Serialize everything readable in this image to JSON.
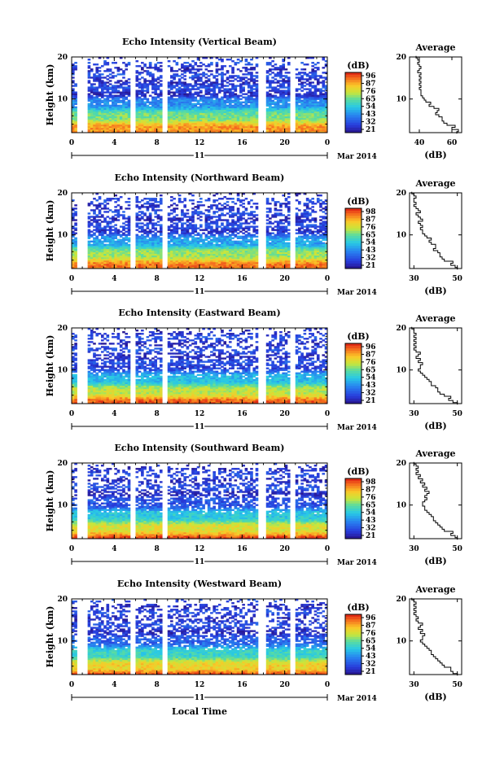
{
  "chart_data": [
    {
      "type": "heatmap",
      "title": "Echo Intensity (Vertical Beam)",
      "ylabel": "Height (km)",
      "xticks": [
        "0",
        "4",
        "8",
        "12",
        "16",
        "20",
        "0"
      ],
      "yticks": [
        "20",
        "10"
      ],
      "xlim": [
        0,
        24
      ],
      "ylim": [
        2,
        20
      ],
      "date_day": "11",
      "date_month": "Mar 2014",
      "colorbar": {
        "unit": "(dB)",
        "ticks": [
          "96",
          "87",
          "76",
          "65",
          "54",
          "43",
          "32",
          "21"
        ]
      },
      "gaps": [
        [
          0.6,
          1.6
        ],
        [
          5.4,
          6.1
        ],
        [
          8.6,
          9.1
        ],
        [
          17.6,
          18.2
        ],
        [
          20.6,
          21.1
        ]
      ],
      "average": {
        "title": "Average",
        "xlabel": "(dB)",
        "xticks": [
          "40",
          "60"
        ],
        "xlim": [
          34,
          66
        ],
        "yticks": [
          "20",
          "10"
        ],
        "height": [
          2,
          2.5,
          3,
          3.5,
          4,
          4.5,
          5,
          5.5,
          6,
          6.5,
          7,
          7.5,
          8,
          8.5,
          9,
          9.5,
          10,
          10.5,
          11,
          11.5,
          12,
          12.5,
          13,
          13.5,
          14,
          14.5,
          15,
          15.5,
          16,
          16.5,
          17,
          17.5,
          18,
          18.5,
          19,
          19.5,
          20
        ],
        "value": [
          63,
          64,
          60,
          62,
          57,
          55,
          54,
          54,
          52,
          50,
          51,
          52,
          49,
          46,
          47,
          44,
          43,
          42,
          41,
          41,
          41,
          40,
          41,
          40,
          41,
          40,
          41,
          40,
          41,
          39,
          40,
          41,
          40,
          39,
          40,
          39,
          38
        ]
      }
    },
    {
      "type": "heatmap",
      "title": "Echo Intensity (Northward Beam)",
      "ylabel": "Height (km)",
      "xticks": [
        "0",
        "4",
        "8",
        "12",
        "16",
        "20",
        "0"
      ],
      "yticks": [
        "20",
        "10"
      ],
      "xlim": [
        0,
        24
      ],
      "ylim": [
        2,
        20
      ],
      "date_day": "11",
      "date_month": "Mar 2014",
      "colorbar": {
        "unit": "(dB)",
        "ticks": [
          "98",
          "87",
          "76",
          "65",
          "54",
          "43",
          "32",
          "21"
        ]
      },
      "gaps": [
        [
          0.6,
          1.6
        ],
        [
          5.4,
          6.1
        ],
        [
          8.6,
          9.1
        ],
        [
          17.6,
          18.2
        ],
        [
          20.6,
          21.1
        ]
      ],
      "average": {
        "title": "Average",
        "xlabel": "(dB)",
        "xticks": [
          "30",
          "50"
        ],
        "xlim": [
          28,
          52
        ],
        "yticks": [
          "20",
          "10"
        ],
        "height": [
          2,
          2.5,
          3,
          3.5,
          4,
          4.5,
          5,
          5.5,
          6,
          6.5,
          7,
          7.5,
          8,
          8.5,
          9,
          9.5,
          10,
          10.5,
          11,
          11.5,
          12,
          12.5,
          13,
          13.5,
          14,
          14.5,
          15,
          15.5,
          16,
          16.5,
          17,
          17.5,
          18,
          18.5,
          19,
          19.5,
          20
        ],
        "value": [
          50,
          49,
          47,
          48,
          44,
          43,
          42,
          42,
          41,
          39,
          40,
          40,
          38,
          37,
          38,
          36,
          35,
          34,
          34,
          33,
          34,
          33,
          32,
          34,
          33,
          32,
          31,
          33,
          32,
          31,
          30,
          31,
          30,
          30,
          31,
          30,
          29
        ]
      }
    },
    {
      "type": "heatmap",
      "title": "Echo Intensity (Eastward Beam)",
      "ylabel": "Height (km)",
      "xticks": [
        "0",
        "4",
        "8",
        "12",
        "16",
        "20",
        "0"
      ],
      "yticks": [
        "20",
        "10"
      ],
      "xlim": [
        0,
        24
      ],
      "ylim": [
        2,
        20
      ],
      "date_day": "11",
      "date_month": "Mar 2014",
      "colorbar": {
        "unit": "(dB)",
        "ticks": [
          "96",
          "87",
          "76",
          "65",
          "54",
          "43",
          "32",
          "21"
        ]
      },
      "gaps": [
        [
          0.6,
          1.6
        ],
        [
          5.4,
          6.1
        ],
        [
          8.6,
          9.1
        ],
        [
          17.6,
          18.2
        ],
        [
          20.6,
          21.1
        ]
      ],
      "average": {
        "title": "Average",
        "xlabel": "(dB)",
        "xticks": [
          "30",
          "50"
        ],
        "xlim": [
          28,
          52
        ],
        "yticks": [
          "20",
          "10"
        ],
        "height": [
          2,
          2.5,
          3,
          3.5,
          4,
          4.5,
          5,
          5.5,
          6,
          6.5,
          7,
          7.5,
          8,
          8.5,
          9,
          9.5,
          10,
          10.5,
          11,
          11.5,
          12,
          12.5,
          13,
          13.5,
          14,
          14.5,
          15,
          15.5,
          16,
          16.5,
          17,
          17.5,
          18,
          18.5,
          19,
          19.5,
          20
        ],
        "value": [
          50,
          48,
          46,
          47,
          44,
          42,
          41,
          41,
          40,
          38,
          38,
          37,
          36,
          35,
          34,
          33,
          32,
          33,
          33,
          34,
          32,
          33,
          31,
          32,
          33,
          31,
          30,
          31,
          30,
          31,
          30,
          31,
          30,
          31,
          30,
          30,
          29
        ]
      }
    },
    {
      "type": "heatmap",
      "title": "Echo Intensity (Southward Beam)",
      "ylabel": "Height (km)",
      "xticks": [
        "0",
        "4",
        "8",
        "12",
        "16",
        "20",
        "0"
      ],
      "yticks": [
        "20",
        "10"
      ],
      "xlim": [
        0,
        24
      ],
      "ylim": [
        2,
        20
      ],
      "date_day": "11",
      "date_month": "Mar 2014",
      "colorbar": {
        "unit": "(dB)",
        "ticks": [
          "98",
          "87",
          "76",
          "65",
          "54",
          "43",
          "32",
          "21"
        ]
      },
      "gaps": [
        [
          0.6,
          1.6
        ],
        [
          5.4,
          6.1
        ],
        [
          8.6,
          9.1
        ],
        [
          17.6,
          18.2
        ],
        [
          20.6,
          21.1
        ]
      ],
      "average": {
        "title": "Average",
        "xlabel": "(dB)",
        "xticks": [
          "30",
          "50"
        ],
        "xlim": [
          28,
          52
        ],
        "yticks": [
          "20",
          "10"
        ],
        "height": [
          2,
          2.5,
          3,
          3.5,
          4,
          4.5,
          5,
          5.5,
          6,
          6.5,
          7,
          7.5,
          8,
          8.5,
          9,
          9.5,
          10,
          10.5,
          11,
          11.5,
          12,
          12.5,
          13,
          13.5,
          14,
          14.5,
          15,
          15.5,
          16,
          16.5,
          17,
          17.5,
          18,
          18.5,
          19,
          19.5,
          20
        ],
        "value": [
          50,
          49,
          47,
          48,
          44,
          43,
          42,
          41,
          40,
          39,
          39,
          38,
          37,
          36,
          35,
          35,
          34,
          34,
          35,
          36,
          35,
          36,
          37,
          35,
          36,
          34,
          35,
          33,
          34,
          32,
          33,
          31,
          32,
          31,
          32,
          31,
          30
        ]
      }
    },
    {
      "type": "heatmap",
      "title": "Echo Intensity (Westward Beam)",
      "ylabel": "Height (km)",
      "xticks": [
        "0",
        "4",
        "8",
        "12",
        "16",
        "20",
        "0"
      ],
      "yticks": [
        "20",
        "10"
      ],
      "xlim": [
        0,
        24
      ],
      "ylim": [
        2,
        20
      ],
      "date_day": "11",
      "date_month": "Mar 2014",
      "xlabel": "Local Time",
      "colorbar": {
        "unit": "(dB)",
        "ticks": [
          "96",
          "87",
          "76",
          "65",
          "54",
          "43",
          "32",
          "21"
        ]
      },
      "gaps": [
        [
          0.6,
          1.6
        ],
        [
          5.4,
          6.1
        ],
        [
          8.6,
          9.1
        ],
        [
          17.6,
          18.2
        ],
        [
          20.6,
          21.1
        ]
      ],
      "average": {
        "title": "Average",
        "xlabel": "(dB)",
        "xticks": [
          "30",
          "50"
        ],
        "xlim": [
          28,
          52
        ],
        "yticks": [
          "20",
          "10"
        ],
        "height": [
          2,
          2.5,
          3,
          3.5,
          4,
          4.5,
          5,
          5.5,
          6,
          6.5,
          7,
          7.5,
          8,
          8.5,
          9,
          9.5,
          10,
          10.5,
          11,
          11.5,
          12,
          12.5,
          13,
          13.5,
          14,
          14.5,
          15,
          15.5,
          16,
          16.5,
          17,
          17.5,
          18,
          18.5,
          19,
          19.5,
          20
        ],
        "value": [
          50,
          48,
          47,
          47,
          44,
          43,
          42,
          41,
          40,
          39,
          38,
          38,
          37,
          36,
          35,
          34,
          33,
          34,
          34,
          35,
          33,
          34,
          32,
          33,
          34,
          32,
          31,
          32,
          31,
          30,
          31,
          30,
          31,
          30,
          31,
          30,
          29
        ]
      }
    }
  ]
}
